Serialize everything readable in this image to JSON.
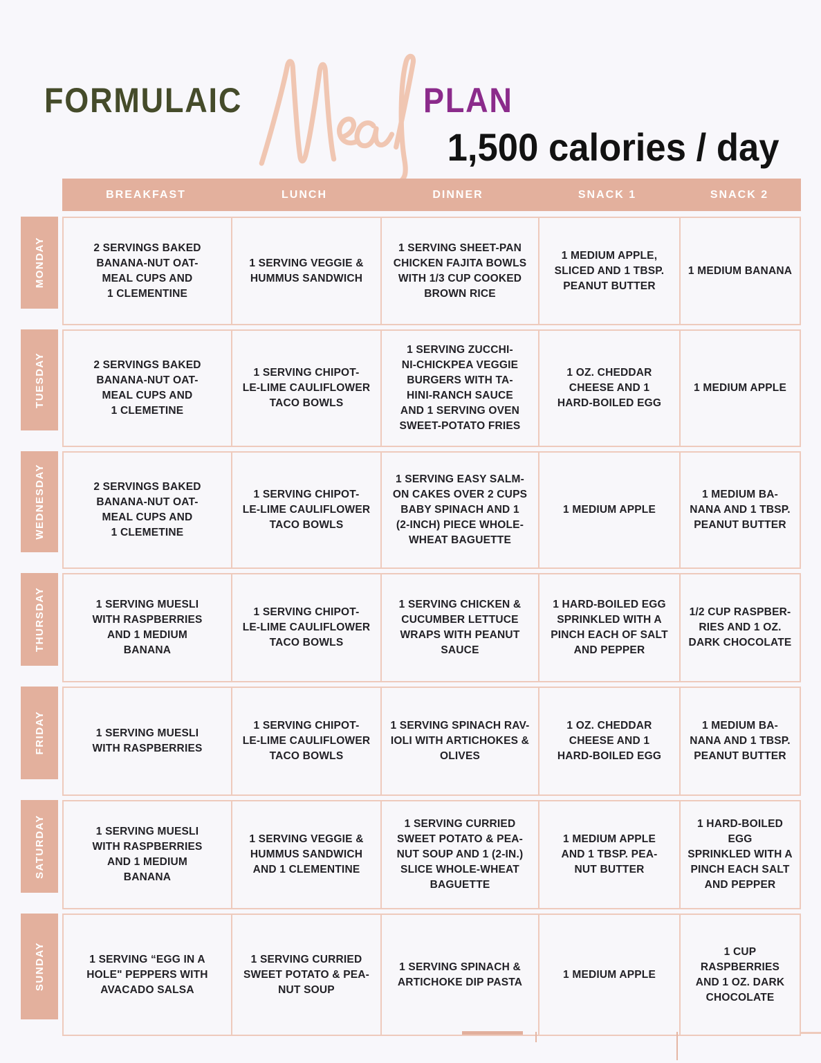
{
  "header": {
    "brand_word": "FORMULAIC",
    "script_word": "Meal",
    "plan_word": "PLAN",
    "subtitle": "1,500 calories / day"
  },
  "theme": {
    "salmon": "#e3b09d",
    "grid_line": "#eecabc",
    "cell_bg": "#f8f7fa",
    "page_bg": "#f8f7fb",
    "brand_olive": "#454b2a",
    "plan_purple": "#8b2b8b",
    "script_peach": "#f0c6b2",
    "cell_text": "#222126",
    "header_text": "#ffffff"
  },
  "table": {
    "columns": [
      "BREAKFAST",
      "LUNCH",
      "DINNER",
      "SNACK 1",
      "SNACK 2"
    ],
    "rows": [
      {
        "day": "MONDAY",
        "meals": [
          "2 SERVINGS BAKED\nBANANA-NUT OAT-\nMEAL CUPS AND\n1 CLEMENTINE",
          "1 SERVING VEGGIE &\nHUMMUS SANDWICH",
          "1 SERVING SHEET-PAN\nCHICKEN FAJITA BOWLS\nWITH 1/3 CUP COOKED\nBROWN RICE",
          "1 MEDIUM APPLE,\nSLICED AND 1 TBSP.\nPEANUT BUTTER",
          "1 MEDIUM BANANA"
        ]
      },
      {
        "day": "TUESDAY",
        "meals": [
          "2 SERVINGS BAKED\nBANANA-NUT OAT-\nMEAL CUPS AND\n1 CLEMETINE",
          "1 SERVING CHIPOT-\nLE-LIME CAULIFLOWER\nTACO BOWLS",
          "1 SERVING ZUCCHI-\nNI-CHICKPEA VEGGIE\nBURGERS WITH TA-\nHINI-RANCH SAUCE\nAND 1 SERVING OVEN\nSWEET-POTATO FRIES",
          "1 OZ. CHEDDAR\nCHEESE AND 1\nHARD-BOILED EGG",
          "1 MEDIUM APPLE"
        ]
      },
      {
        "day": "WEDNESDAY",
        "meals": [
          "2 SERVINGS BAKED\nBANANA-NUT OAT-\nMEAL CUPS AND\n1 CLEMETINE",
          "1 SERVING CHIPOT-\nLE-LIME CAULIFLOWER\nTACO BOWLS",
          "1 SERVING EASY SALM-\nON CAKES OVER 2 CUPS\nBABY SPINACH AND 1\n(2-INCH) PIECE WHOLE-\nWHEAT BAGUETTE",
          "1 MEDIUM APPLE",
          "1 MEDIUM BA-\nNANA AND 1 TBSP.\nPEANUT BUTTER"
        ]
      },
      {
        "day": "THURSDAY",
        "meals": [
          "1 SERVING MUESLI\nWITH RASPBERRIES\nAND 1 MEDIUM\nBANANA",
          "1 SERVING CHIPOT-\nLE-LIME CAULIFLOWER\nTACO BOWLS",
          "1 SERVING CHICKEN &\nCUCUMBER LETTUCE\nWRAPS WITH PEANUT\nSAUCE",
          "1 HARD-BOILED EGG\nSPRINKLED WITH A\nPINCH EACH OF SALT\nAND PEPPER",
          "1/2 CUP RASPBER-\nRIES AND 1 OZ.\nDARK CHOCOLATE"
        ]
      },
      {
        "day": "FRIDAY",
        "meals": [
          "1 SERVING MUESLI\nWITH RASPBERRIES",
          "1 SERVING CHIPOT-\nLE-LIME CAULIFLOWER\nTACO BOWLS",
          "1 SERVING SPINACH RAV-\nIOLI WITH ARTICHOKES &\nOLIVES",
          "1 OZ. CHEDDAR\nCHEESE AND 1\nHARD-BOILED EGG",
          "1 MEDIUM BA-\nNANA AND 1 TBSP.\nPEANUT BUTTER"
        ]
      },
      {
        "day": "SATURDAY",
        "meals": [
          "1 SERVING MUESLI\nWITH RASPBERRIES\nAND 1 MEDIUM\nBANANA",
          "1 SERVING VEGGIE &\nHUMMUS SANDWICH\nAND 1 CLEMENTINE",
          "1 SERVING CURRIED\nSWEET POTATO & PEA-\nNUT SOUP AND 1 (2-IN.)\nSLICE WHOLE-WHEAT\nBAGUETTE",
          "1 MEDIUM APPLE\nAND 1 TBSP. PEA-\nNUT BUTTER",
          "1 HARD-BOILED EGG\nSPRINKLED WITH A\nPINCH EACH SALT\nAND PEPPER"
        ]
      },
      {
        "day": "SUNDAY",
        "meals": [
          "1 SERVING “EGG IN A\nHOLE\" PEPPERS WITH\nAVACADO SALSA",
          "1 SERVING CURRIED\nSWEET POTATO & PEA-\nNUT SOUP",
          "1 SERVING SPINACH &\nARTICHOKE DIP PASTA",
          "1 MEDIUM APPLE",
          "1 CUP RASPBERRIES\nAND 1 OZ. DARK\nCHOCOLATE"
        ]
      }
    ]
  }
}
